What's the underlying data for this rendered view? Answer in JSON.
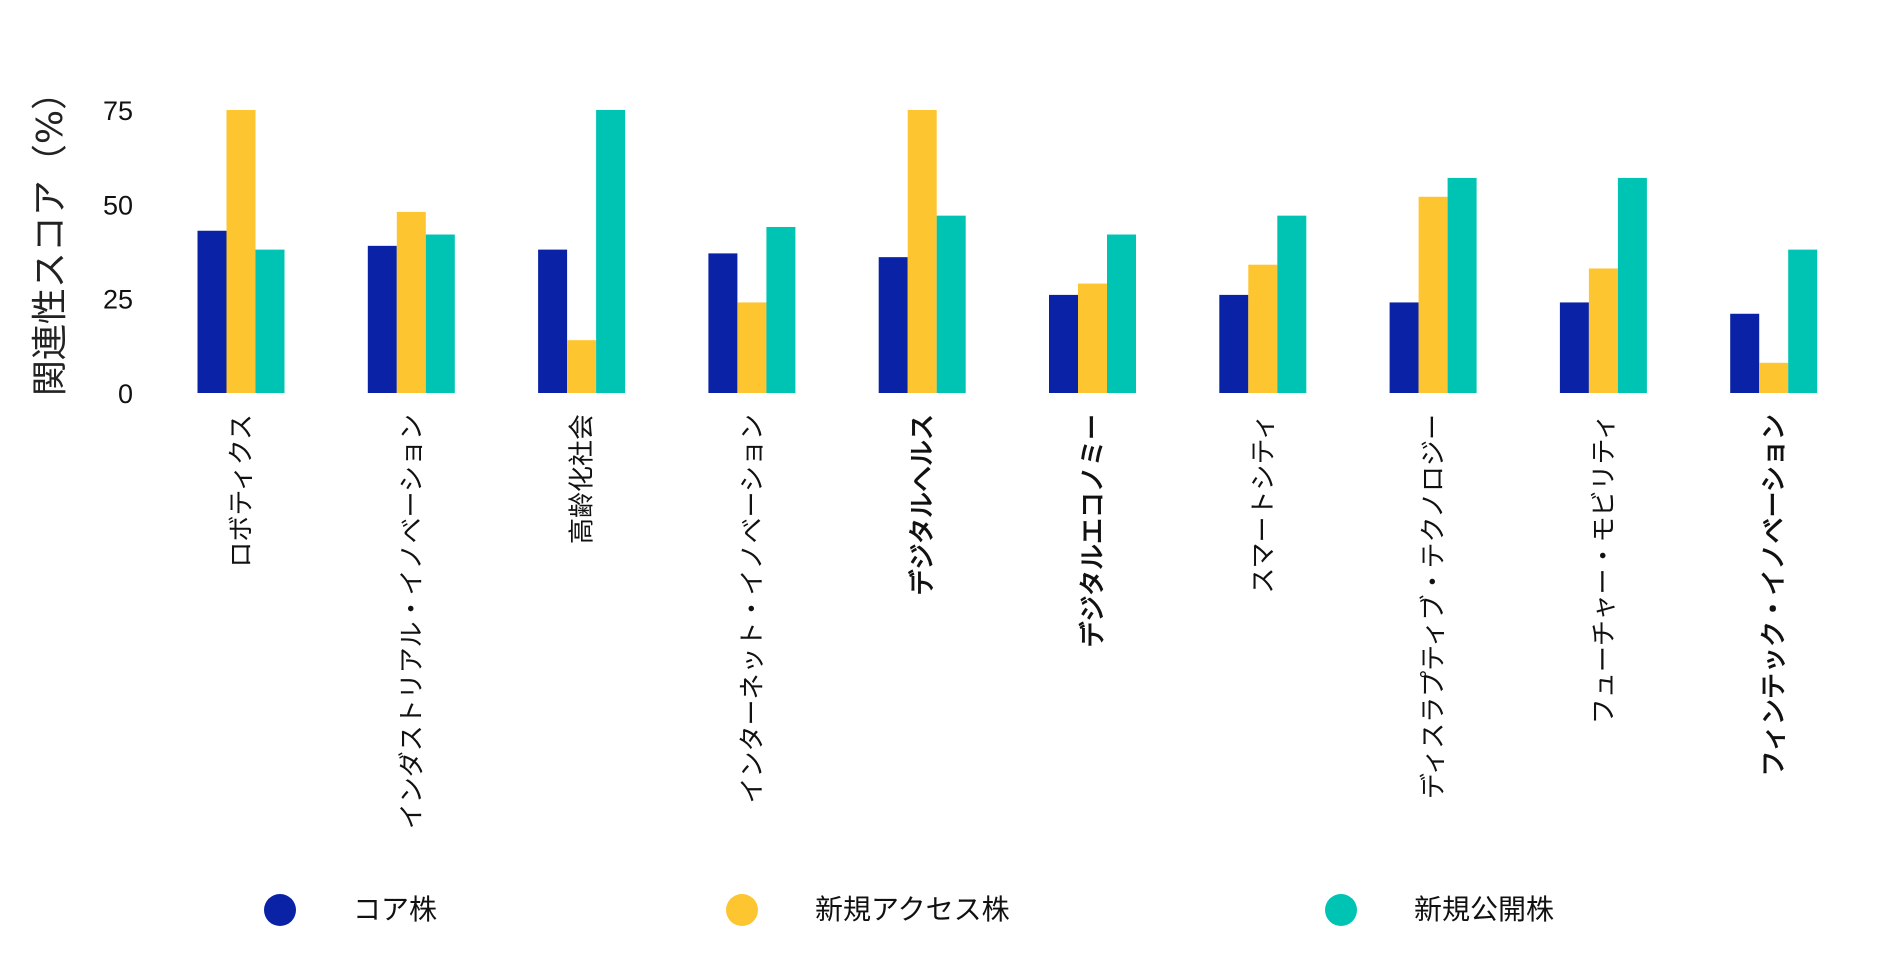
{
  "chart_data": {
    "type": "bar",
    "title": "",
    "xlabel": "",
    "ylabel": "関連性スコア（%）",
    "ylim": [
      0,
      75
    ],
    "yticks": [
      0,
      25,
      50,
      75
    ],
    "grid": false,
    "legend_placement": "bottom",
    "categories": [
      "ロボティクス",
      "インダストリアル・イノベーション",
      "高齢化社会",
      "インターネット・イノベーション",
      "デジタルヘルス",
      "デジタルエコノミー",
      "スマートシティ",
      "ディスラプティブ・テクノロジー",
      "フューチャー・モビリティ",
      "フィンテック・イノベーション"
    ],
    "bold_categories": [
      "デジタルヘルス",
      "デジタルエコノミー",
      "フィンテック・イノベーション"
    ],
    "series": [
      {
        "name": "コア株",
        "color": "#0a22a6",
        "values": [
          43,
          39,
          38,
          37,
          36,
          26,
          26,
          24,
          24,
          21
        ]
      },
      {
        "name": "新規アクセス株",
        "color": "#fdc52f",
        "values": [
          75,
          48,
          14,
          24,
          75,
          29,
          34,
          52,
          33,
          8
        ]
      },
      {
        "name": "新規公開株",
        "color": "#00c4b3",
        "values": [
          38,
          42,
          75,
          44,
          47,
          42,
          47,
          57,
          57,
          38
        ]
      }
    ]
  }
}
